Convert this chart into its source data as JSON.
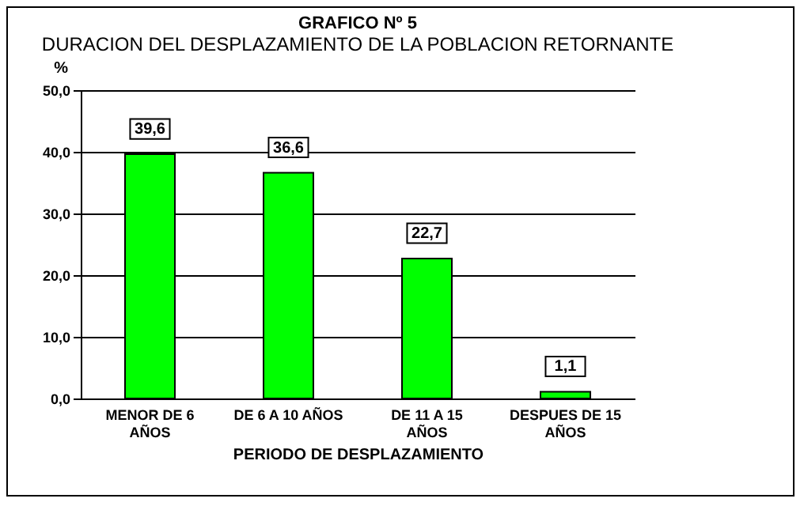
{
  "chart_data": {
    "type": "bar",
    "title": "GRAFICO Nº 5",
    "subtitle": "DURACION DEL DESPLAZAMIENTO DE LA POBLACION RETORNANTE",
    "xlabel": "PERIODO DE DESPLAZAMIENTO",
    "ylabel": "%",
    "categories": [
      "MENOR DE 6 AÑOS",
      "DE 6 A 10 AÑOS",
      "DE 11 A 15 AÑOS",
      "DESPUES DE 15 AÑOS"
    ],
    "values": [
      39.6,
      36.6,
      22.7,
      1.1
    ],
    "color": "#00ff00",
    "value_labels": [
      "39,6",
      "36,6",
      "22,7",
      "1,1"
    ],
    "ylim": [
      0,
      50
    ],
    "yticks": [
      {
        "value": 0,
        "label": "0,0"
      },
      {
        "value": 10,
        "label": "10,0"
      },
      {
        "value": 20,
        "label": "20,0"
      },
      {
        "value": 30,
        "label": "30,0"
      },
      {
        "value": 40,
        "label": "40,0"
      },
      {
        "value": 50,
        "label": "50,0"
      }
    ],
    "grid": "y"
  }
}
